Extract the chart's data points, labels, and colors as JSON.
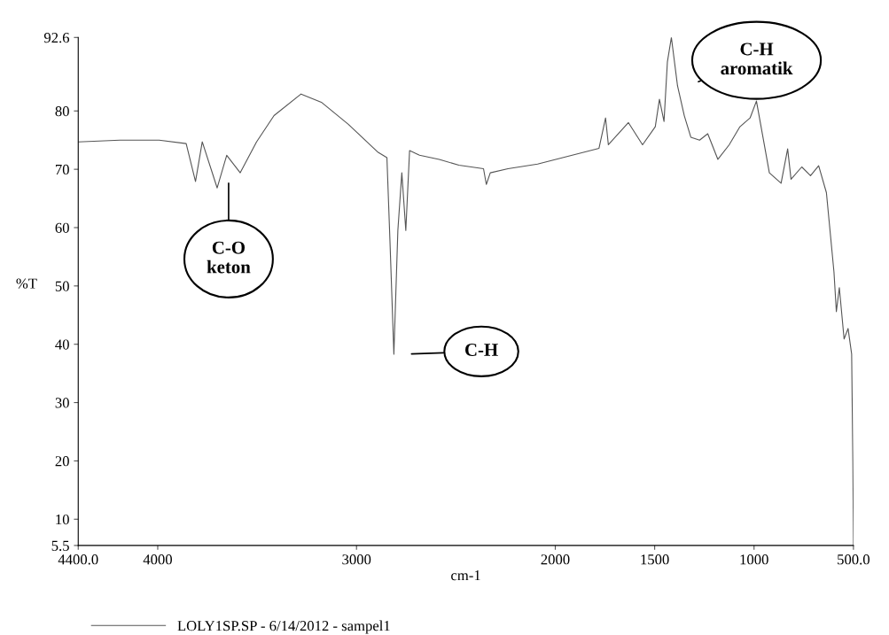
{
  "chart_data": {
    "type": "line",
    "xlabel": "cm-1",
    "ylabel": "%T",
    "xlim": [
      4400,
      500
    ],
    "ylim": [
      5.5,
      92.6
    ],
    "xticks": [
      {
        "value": 4400,
        "label": "4400.0"
      },
      4000,
      3000,
      2000,
      1500,
      1000,
      {
        "value": 500,
        "label": "500.0"
      }
    ],
    "yticks": [
      5.5,
      10,
      20,
      30,
      40,
      50,
      60,
      70,
      80,
      92.6
    ],
    "grid": false,
    "legend": "bottom",
    "marker": "none",
    "line_style": "solid",
    "series": [
      {
        "name": "LOLY1SP.SP - 6/14/2012 - sampel1",
        "color": "#555555",
        "x": [
          4400,
          4190,
          3993,
          3857,
          3810,
          3776,
          3701,
          3653,
          3585,
          3503,
          3415,
          3279,
          3177,
          3041,
          2891,
          2847,
          2832,
          2812,
          2792,
          2772,
          2752,
          2733,
          2683,
          2584,
          2485,
          2361,
          2347,
          2327,
          2238,
          2089,
          1780,
          1747,
          1733,
          1632,
          1561,
          1497,
          1476,
          1453,
          1436,
          1416,
          1385,
          1351,
          1318,
          1274,
          1233,
          1182,
          1125,
          1071,
          1020,
          988,
          953,
          923,
          864,
          831,
          814,
          760,
          716,
          675,
          636,
          598,
          586,
          571,
          547,
          527,
          509,
          503,
          500
        ],
        "values": [
          74.7,
          75.0,
          75.0,
          74.4,
          67.9,
          74.7,
          66.8,
          72.4,
          69.4,
          74.7,
          79.2,
          82.9,
          81.5,
          77.7,
          72.9,
          72.0,
          58.0,
          38.3,
          59.5,
          69.4,
          59.5,
          73.2,
          72.4,
          71.7,
          70.7,
          70.1,
          67.4,
          69.4,
          70.1,
          70.9,
          73.6,
          78.8,
          74.2,
          78.0,
          74.2,
          77.3,
          82.0,
          78.2,
          88.4,
          92.6,
          84.3,
          79.2,
          75.5,
          75.0,
          76.1,
          71.7,
          74.2,
          77.3,
          78.8,
          81.7,
          75.1,
          69.4,
          67.6,
          73.5,
          68.3,
          70.4,
          68.9,
          70.6,
          66.0,
          52.4,
          45.6,
          49.7,
          40.9,
          42.7,
          38.3,
          20.0,
          5.5
        ]
      }
    ],
    "annotations": [
      "C-O\nketon",
      "C-H",
      "C-H\naromatik"
    ]
  }
}
